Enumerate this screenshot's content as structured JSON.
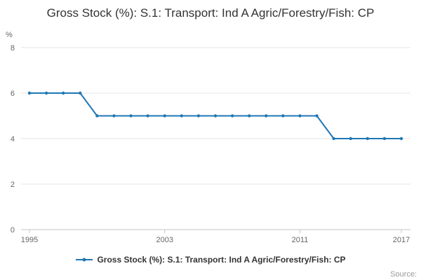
{
  "title": "Gross Stock (%): S.1: Transport: Ind A Agric/Forestry/Fish: CP",
  "y_axis_unit_label": "%",
  "legend": {
    "label": "Gross Stock (%): S.1: Transport: Ind A Agric/Forestry/Fish: CP"
  },
  "source_label": "Source:",
  "colors": {
    "line": "#1f77b4",
    "title": "#333333",
    "axis_text": "#666666",
    "grid": "#e6e6e6",
    "axis_line": "#c6c6c6",
    "source": "#999999"
  },
  "chart_data": {
    "type": "line",
    "title": "Gross Stock (%): S.1: Transport: Ind A Agric/Forestry/Fish: CP",
    "xlabel": "",
    "ylabel": "%",
    "x": [
      1995,
      1996,
      1997,
      1998,
      1999,
      2000,
      2001,
      2002,
      2003,
      2004,
      2005,
      2006,
      2007,
      2008,
      2009,
      2010,
      2011,
      2012,
      2013,
      2014,
      2015,
      2016,
      2017
    ],
    "series": [
      {
        "name": "Gross Stock (%): S.1: Transport: Ind A Agric/Forestry/Fish: CP",
        "values": [
          6,
          6,
          6,
          6,
          5,
          5,
          5,
          5,
          5,
          5,
          5,
          5,
          5,
          5,
          5,
          5,
          5,
          5,
          4,
          4,
          4,
          4,
          4
        ]
      }
    ],
    "ylim": [
      0,
      8
    ],
    "yticks": [
      0,
      2,
      4,
      6,
      8
    ],
    "xticks": [
      1995,
      2003,
      2011,
      2017
    ],
    "grid": true,
    "legend_position": "bottom"
  }
}
